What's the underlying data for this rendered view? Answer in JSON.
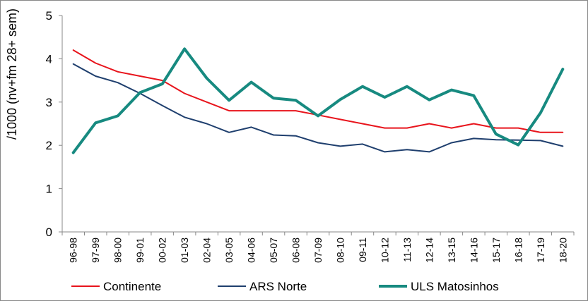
{
  "chart_data": {
    "type": "line",
    "title": "",
    "xlabel": "",
    "ylabel": "/1000 (nv+fm 28+ sem)",
    "ylim": [
      0,
      5
    ],
    "yticks": [
      0,
      1,
      2,
      3,
      4,
      5
    ],
    "grid": false,
    "legend_position": "bottom",
    "categories": [
      "96-98",
      "97-99",
      "98-00",
      "99-01",
      "00-02",
      "01-03",
      "02-04",
      "03-05",
      "04-06",
      "05-07",
      "06-08",
      "07-09",
      "08-10",
      "09-11",
      "10-12",
      "11-13",
      "12-14",
      "13-15",
      "14-16",
      "15-17",
      "16-18",
      "17-19",
      "18-20"
    ],
    "series": [
      {
        "name": "Continente",
        "color": "#e8141c",
        "width": 2,
        "values": [
          4.2,
          3.9,
          3.7,
          3.6,
          3.5,
          3.2,
          3.0,
          2.8,
          2.8,
          2.8,
          2.8,
          2.7,
          2.6,
          2.5,
          2.4,
          2.4,
          2.5,
          2.4,
          2.5,
          2.4,
          2.4,
          2.3,
          2.3
        ]
      },
      {
        "name": "ARS Norte",
        "color": "#1f3f6e",
        "width": 2,
        "values": [
          3.88,
          3.6,
          3.45,
          3.2,
          2.92,
          2.65,
          2.5,
          2.3,
          2.42,
          2.24,
          2.22,
          2.06,
          1.98,
          2.03,
          1.85,
          1.9,
          1.85,
          2.06,
          2.16,
          2.13,
          2.12,
          2.11,
          1.98
        ]
      },
      {
        "name": "ULS Matosinhos",
        "color": "#178a80",
        "width": 4,
        "values": [
          1.83,
          2.52,
          2.68,
          3.22,
          3.42,
          4.23,
          3.55,
          3.04,
          3.46,
          3.09,
          3.04,
          2.68,
          3.06,
          3.36,
          3.11,
          3.36,
          3.05,
          3.28,
          3.15,
          2.26,
          2.01,
          2.75,
          3.76
        ]
      }
    ]
  }
}
